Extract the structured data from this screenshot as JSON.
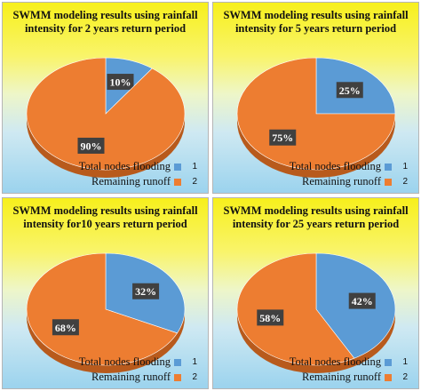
{
  "colors": {
    "flooding": "#5b9bd5",
    "runoff": "#ed7d31",
    "flooding_dark": "#2f6ea8",
    "runoff_dark": "#b85a1c",
    "label_bg": "#404040"
  },
  "chart_data": [
    {
      "type": "pie",
      "title": "SWMM modeling results using rainfall intensity for 2 years return period",
      "categories": [
        "Total nodes flooding",
        "Remaining runoff"
      ],
      "legend_keys": [
        "1",
        "2"
      ],
      "values": [
        10,
        90
      ],
      "labels": [
        "10%",
        "90%"
      ],
      "legend": "bottom-right"
    },
    {
      "type": "pie",
      "title": "SWMM modeling results using rainfall intensity for 5 years return period",
      "categories": [
        "Total nodes flooding",
        "Remaining runoff"
      ],
      "legend_keys": [
        "1",
        "2"
      ],
      "values": [
        25,
        75
      ],
      "labels": [
        "25%",
        "75%"
      ],
      "legend": "bottom-right"
    },
    {
      "type": "pie",
      "title": "SWMM modeling results using rainfall intensity for10 years return period",
      "categories": [
        "Total nodes flooding",
        "Remaining runoff"
      ],
      "legend_keys": [
        "1",
        "2"
      ],
      "values": [
        32,
        68
      ],
      "labels": [
        "32%",
        "68%"
      ],
      "legend": "bottom-right"
    },
    {
      "type": "pie",
      "title": "SWMM modeling results using rainfall intensity for 25 years return period",
      "categories": [
        "Total nodes flooding",
        "Remaining runoff"
      ],
      "legend_keys": [
        "1",
        "2"
      ],
      "values": [
        42,
        58
      ],
      "labels": [
        "42%",
        "58%"
      ],
      "legend": "bottom-right"
    }
  ]
}
